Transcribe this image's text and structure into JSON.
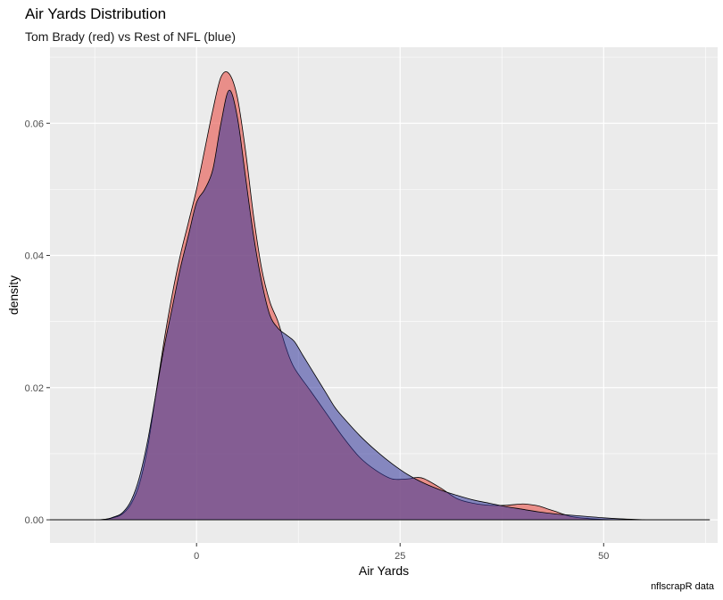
{
  "title": "Air Yards Distribution",
  "subtitle": "Tom Brady (red) vs Rest of NFL (blue)",
  "caption": "nflscrapR data",
  "colors": {
    "panel": "#ebebeb",
    "grid_major": "#ffffff",
    "red_fill": "#e8675f",
    "blue_fill": "#31359b",
    "outline": "#000000",
    "axis_text": "#4d4d4d"
  },
  "chart_data": {
    "type": "area",
    "title": "Air Yards Distribution",
    "subtitle": "Tom Brady (red) vs Rest of NFL (blue)",
    "xlabel": "Air Yards",
    "ylabel": "density",
    "xlim": [
      -18,
      64
    ],
    "ylim": [
      -0.0035,
      0.0715
    ],
    "x_ticks": [
      0,
      25,
      50
    ],
    "y_ticks": [
      0.0,
      0.02,
      0.04,
      0.06
    ],
    "x_tick_labels": [
      "0",
      "25",
      "50"
    ],
    "y_tick_labels": [
      "0.00",
      "0.02",
      "0.04",
      "0.06"
    ],
    "grid": true,
    "legend": "none",
    "series": [
      {
        "color": "#e8675f",
        "opacity": 0.7,
        "x": [
          -18,
          -12,
          -10,
          -9,
          -8,
          -7,
          -6,
          -5,
          -4,
          -3,
          -2,
          -1,
          0,
          1,
          2,
          3,
          4,
          5,
          6,
          7,
          8,
          9,
          10,
          11,
          12,
          14,
          16,
          18,
          20,
          22,
          24,
          26,
          27,
          28,
          30,
          32,
          34,
          36,
          38,
          40,
          41,
          42,
          43,
          44,
          46,
          48,
          50,
          52,
          54,
          56,
          58,
          60,
          63
        ],
        "y": [
          0,
          0,
          0.0004,
          0.001,
          0.0025,
          0.0055,
          0.011,
          0.019,
          0.027,
          0.034,
          0.04,
          0.045,
          0.05,
          0.056,
          0.062,
          0.067,
          0.0675,
          0.064,
          0.056,
          0.046,
          0.038,
          0.033,
          0.03,
          0.026,
          0.023,
          0.0195,
          0.016,
          0.0125,
          0.0095,
          0.0075,
          0.0062,
          0.0062,
          0.0064,
          0.0062,
          0.0048,
          0.0032,
          0.0025,
          0.0022,
          0.0022,
          0.0024,
          0.0023,
          0.0021,
          0.0017,
          0.0013,
          0.0005,
          0.0002,
          5e-05,
          0,
          0,
          0,
          0,
          0,
          0
        ]
      },
      {
        "color": "#31359b",
        "opacity": 0.55,
        "x": [
          -18,
          -12,
          -10,
          -9,
          -8,
          -7,
          -6,
          -5,
          -4,
          -3,
          -2,
          -1,
          0,
          1,
          2,
          3,
          4,
          5,
          6,
          7,
          8,
          9,
          10,
          11,
          12,
          13,
          14,
          15,
          16,
          17,
          18,
          20,
          22,
          24,
          26,
          28,
          30,
          32,
          34,
          36,
          38,
          40,
          42,
          44,
          46,
          48,
          50,
          52,
          54,
          55,
          56,
          60,
          63
        ],
        "y": [
          0,
          0,
          0.0005,
          0.0012,
          0.003,
          0.0065,
          0.012,
          0.019,
          0.026,
          0.032,
          0.038,
          0.043,
          0.048,
          0.05,
          0.053,
          0.06,
          0.065,
          0.061,
          0.052,
          0.043,
          0.036,
          0.031,
          0.029,
          0.028,
          0.027,
          0.025,
          0.023,
          0.021,
          0.019,
          0.017,
          0.0155,
          0.0128,
          0.0105,
          0.0085,
          0.0068,
          0.0055,
          0.0045,
          0.0037,
          0.003,
          0.0025,
          0.002,
          0.0016,
          0.0012,
          0.0009,
          0.0007,
          0.0005,
          0.0003,
          0.00015,
          5e-05,
          2e-05,
          0,
          0,
          0
        ]
      }
    ]
  }
}
